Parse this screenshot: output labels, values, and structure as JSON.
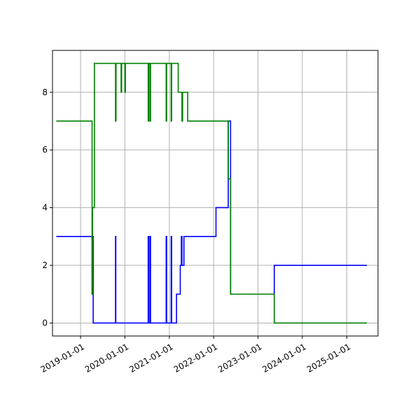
{
  "chart_data": {
    "type": "line",
    "title": "",
    "xlabel": "",
    "ylabel": "",
    "grid": true,
    "x_axis_type": "date",
    "xlim": [
      "2018-05-15",
      "2025-09-15"
    ],
    "ylim": [
      -0.45,
      9.45
    ],
    "x_ticks": [
      "2019-01-01",
      "2020-01-01",
      "2021-01-01",
      "2022-01-01",
      "2023-01-01",
      "2024-01-01",
      "2025-01-01"
    ],
    "y_ticks": [
      0,
      2,
      4,
      6,
      8
    ],
    "series": [
      {
        "color": "#0000ff",
        "step": "post",
        "points": [
          [
            "2018-06-15",
            3
          ],
          [
            "2019-04-05",
            3
          ],
          [
            "2019-04-06",
            1
          ],
          [
            "2019-04-08",
            3
          ],
          [
            "2019-04-15",
            0
          ],
          [
            "2019-10-15",
            0
          ],
          [
            "2019-10-16",
            3
          ],
          [
            "2019-10-18",
            0
          ],
          [
            "2020-07-10",
            0
          ],
          [
            "2020-07-11",
            3
          ],
          [
            "2020-07-15",
            0
          ],
          [
            "2020-07-25",
            0
          ],
          [
            "2020-07-26",
            3
          ],
          [
            "2020-07-30",
            0
          ],
          [
            "2020-12-05",
            0
          ],
          [
            "2020-12-06",
            3
          ],
          [
            "2020-12-10",
            0
          ],
          [
            "2021-01-15",
            0
          ],
          [
            "2021-01-16",
            3
          ],
          [
            "2021-01-20",
            0
          ],
          [
            "2021-03-01",
            1
          ],
          [
            "2021-04-01",
            2
          ],
          [
            "2021-04-10",
            3
          ],
          [
            "2021-04-15",
            2
          ],
          [
            "2021-05-01",
            3
          ],
          [
            "2022-01-20",
            4
          ],
          [
            "2022-05-01",
            7
          ],
          [
            "2022-05-20",
            1
          ],
          [
            "2023-05-15",
            2
          ],
          [
            "2025-06-15",
            2
          ]
        ]
      },
      {
        "color": "#008000",
        "step": "post",
        "points": [
          [
            "2018-06-15",
            7
          ],
          [
            "2019-04-05",
            7
          ],
          [
            "2019-04-06",
            1
          ],
          [
            "2019-04-10",
            4
          ],
          [
            "2019-04-25",
            9
          ],
          [
            "2019-10-15",
            9
          ],
          [
            "2019-10-16",
            7
          ],
          [
            "2019-10-20",
            9
          ],
          [
            "2019-12-01",
            8
          ],
          [
            "2019-12-05",
            9
          ],
          [
            "2020-01-01",
            8
          ],
          [
            "2020-01-05",
            9
          ],
          [
            "2020-07-10",
            9
          ],
          [
            "2020-07-11",
            7
          ],
          [
            "2020-07-15",
            9
          ],
          [
            "2020-07-25",
            9
          ],
          [
            "2020-07-26",
            7
          ],
          [
            "2020-07-30",
            9
          ],
          [
            "2020-12-05",
            9
          ],
          [
            "2020-12-06",
            7
          ],
          [
            "2020-12-10",
            9
          ],
          [
            "2021-01-15",
            9
          ],
          [
            "2021-01-16",
            7
          ],
          [
            "2021-01-20",
            9
          ],
          [
            "2021-03-15",
            8
          ],
          [
            "2021-04-15",
            7
          ],
          [
            "2021-04-20",
            8
          ],
          [
            "2021-06-01",
            7
          ],
          [
            "2022-05-01",
            5
          ],
          [
            "2022-05-20",
            1
          ],
          [
            "2023-05-15",
            0
          ],
          [
            "2025-06-15",
            0
          ]
        ]
      }
    ]
  }
}
